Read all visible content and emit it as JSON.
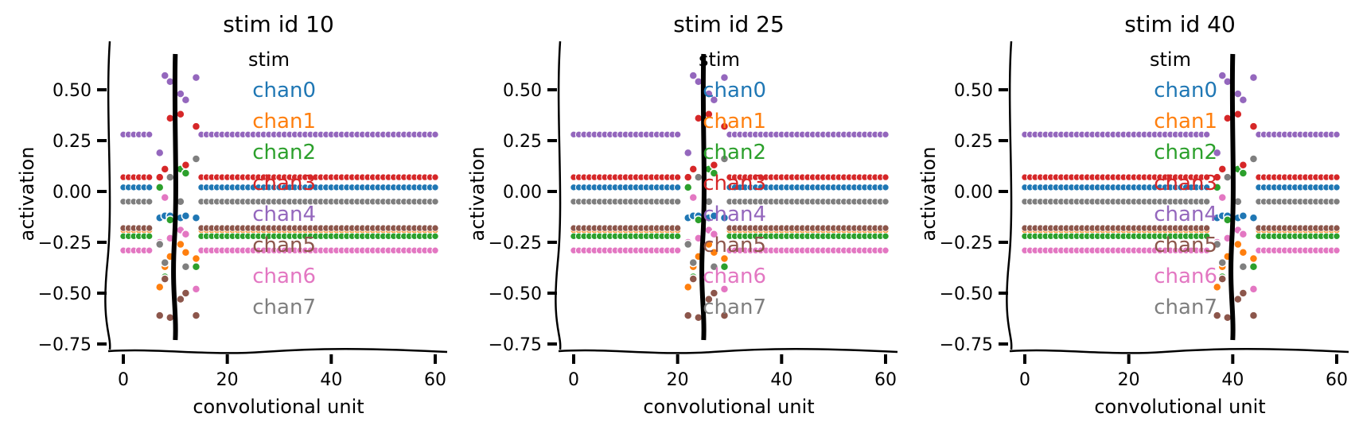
{
  "colors": {
    "chan0": "#1f77b4",
    "chan1": "#ff7f0e",
    "chan2": "#2ca02c",
    "chan3": "#d62728",
    "chan4": "#9467bd",
    "chan5": "#8c564b",
    "chan6": "#e377c2",
    "chan7": "#7f7f7f",
    "stim": "#000000",
    "axis": "#000000"
  },
  "chart_data": [
    {
      "type": "scatter",
      "title": "stim id 10",
      "xlabel": "convolutional unit",
      "ylabel": "activation",
      "xlim": [
        -3,
        62
      ],
      "ylim": [
        -0.76,
        0.74
      ],
      "xticks": [
        "0",
        "20",
        "40",
        "60"
      ],
      "yticks": [
        "0.50",
        "0.25",
        "0.00",
        "−0.25",
        "−0.50",
        "−0.75"
      ],
      "stim_x": 10,
      "legend": {
        "title": "stim",
        "entries": [
          "chan0",
          "chan1",
          "chan2",
          "chan3",
          "chan4",
          "chan5",
          "chan6",
          "chan7"
        ],
        "placement": "right"
      },
      "grid": false
    },
    {
      "type": "scatter",
      "title": "stim id 25",
      "xlabel": "convolutional unit",
      "ylabel": "activation",
      "xlim": [
        -3,
        62
      ],
      "ylim": [
        -0.76,
        0.74
      ],
      "xticks": [
        "0",
        "20",
        "40",
        "60"
      ],
      "yticks": [
        "0.50",
        "0.25",
        "0.00",
        "−0.25",
        "−0.50",
        "−0.75"
      ],
      "stim_x": 25,
      "legend": {
        "title": "stim",
        "entries": [
          "chan0",
          "chan1",
          "chan2",
          "chan3",
          "chan4",
          "chan5",
          "chan6",
          "chan7"
        ],
        "placement": "right"
      },
      "grid": false
    },
    {
      "type": "scatter",
      "title": "stim id 40",
      "xlabel": "convolutional unit",
      "ylabel": "activation",
      "xlim": [
        -3,
        62
      ],
      "ylim": [
        -0.76,
        0.74
      ],
      "xticks": [
        "0",
        "20",
        "40",
        "60"
      ],
      "yticks": [
        "0.50",
        "0.25",
        "0.00",
        "−0.25",
        "−0.50",
        "−0.75"
      ],
      "stim_x": 40,
      "legend": {
        "title": "stim",
        "entries": [
          "chan0",
          "chan1",
          "chan2",
          "chan3",
          "chan4",
          "chan5",
          "chan6",
          "chan7"
        ],
        "placement": "right"
      },
      "grid": false
    }
  ],
  "series": [
    {
      "name": "chan0",
      "baseline": 0.02,
      "response": [
        -0.13,
        -0.12,
        -0.12,
        -0.13,
        -0.12,
        -0.13
      ]
    },
    {
      "name": "chan1",
      "baseline": -0.19,
      "response": [
        -0.47,
        -0.37,
        -0.32,
        -0.26,
        -0.3,
        -0.33
      ]
    },
    {
      "name": "chan2",
      "baseline": -0.22,
      "response": [
        0.02,
        -0.42,
        -0.14,
        0.11,
        0.09,
        -0.37
      ]
    },
    {
      "name": "chan3",
      "baseline": 0.07,
      "response": [
        0.07,
        0.11,
        0.36,
        0.38,
        0.13,
        0.32
      ]
    },
    {
      "name": "chan4",
      "baseline": 0.28,
      "response": [
        0.19,
        0.57,
        0.54,
        0.48,
        0.45,
        0.56
      ]
    },
    {
      "name": "chan5",
      "baseline": -0.18,
      "response": [
        -0.61,
        -0.43,
        -0.62,
        -0.53,
        -0.5,
        -0.61
      ]
    },
    {
      "name": "chan6",
      "baseline": -0.29,
      "response": [
        -0.25,
        -0.03,
        -0.23,
        -0.19,
        -0.21,
        -0.48
      ]
    },
    {
      "name": "chan7",
      "baseline": -0.05,
      "response": [
        -0.26,
        -0.35,
        0.07,
        -0.05,
        -0.37,
        0.16
      ]
    }
  ],
  "response_offsets": [
    -3,
    -2,
    -1,
    1,
    2,
    4
  ]
}
